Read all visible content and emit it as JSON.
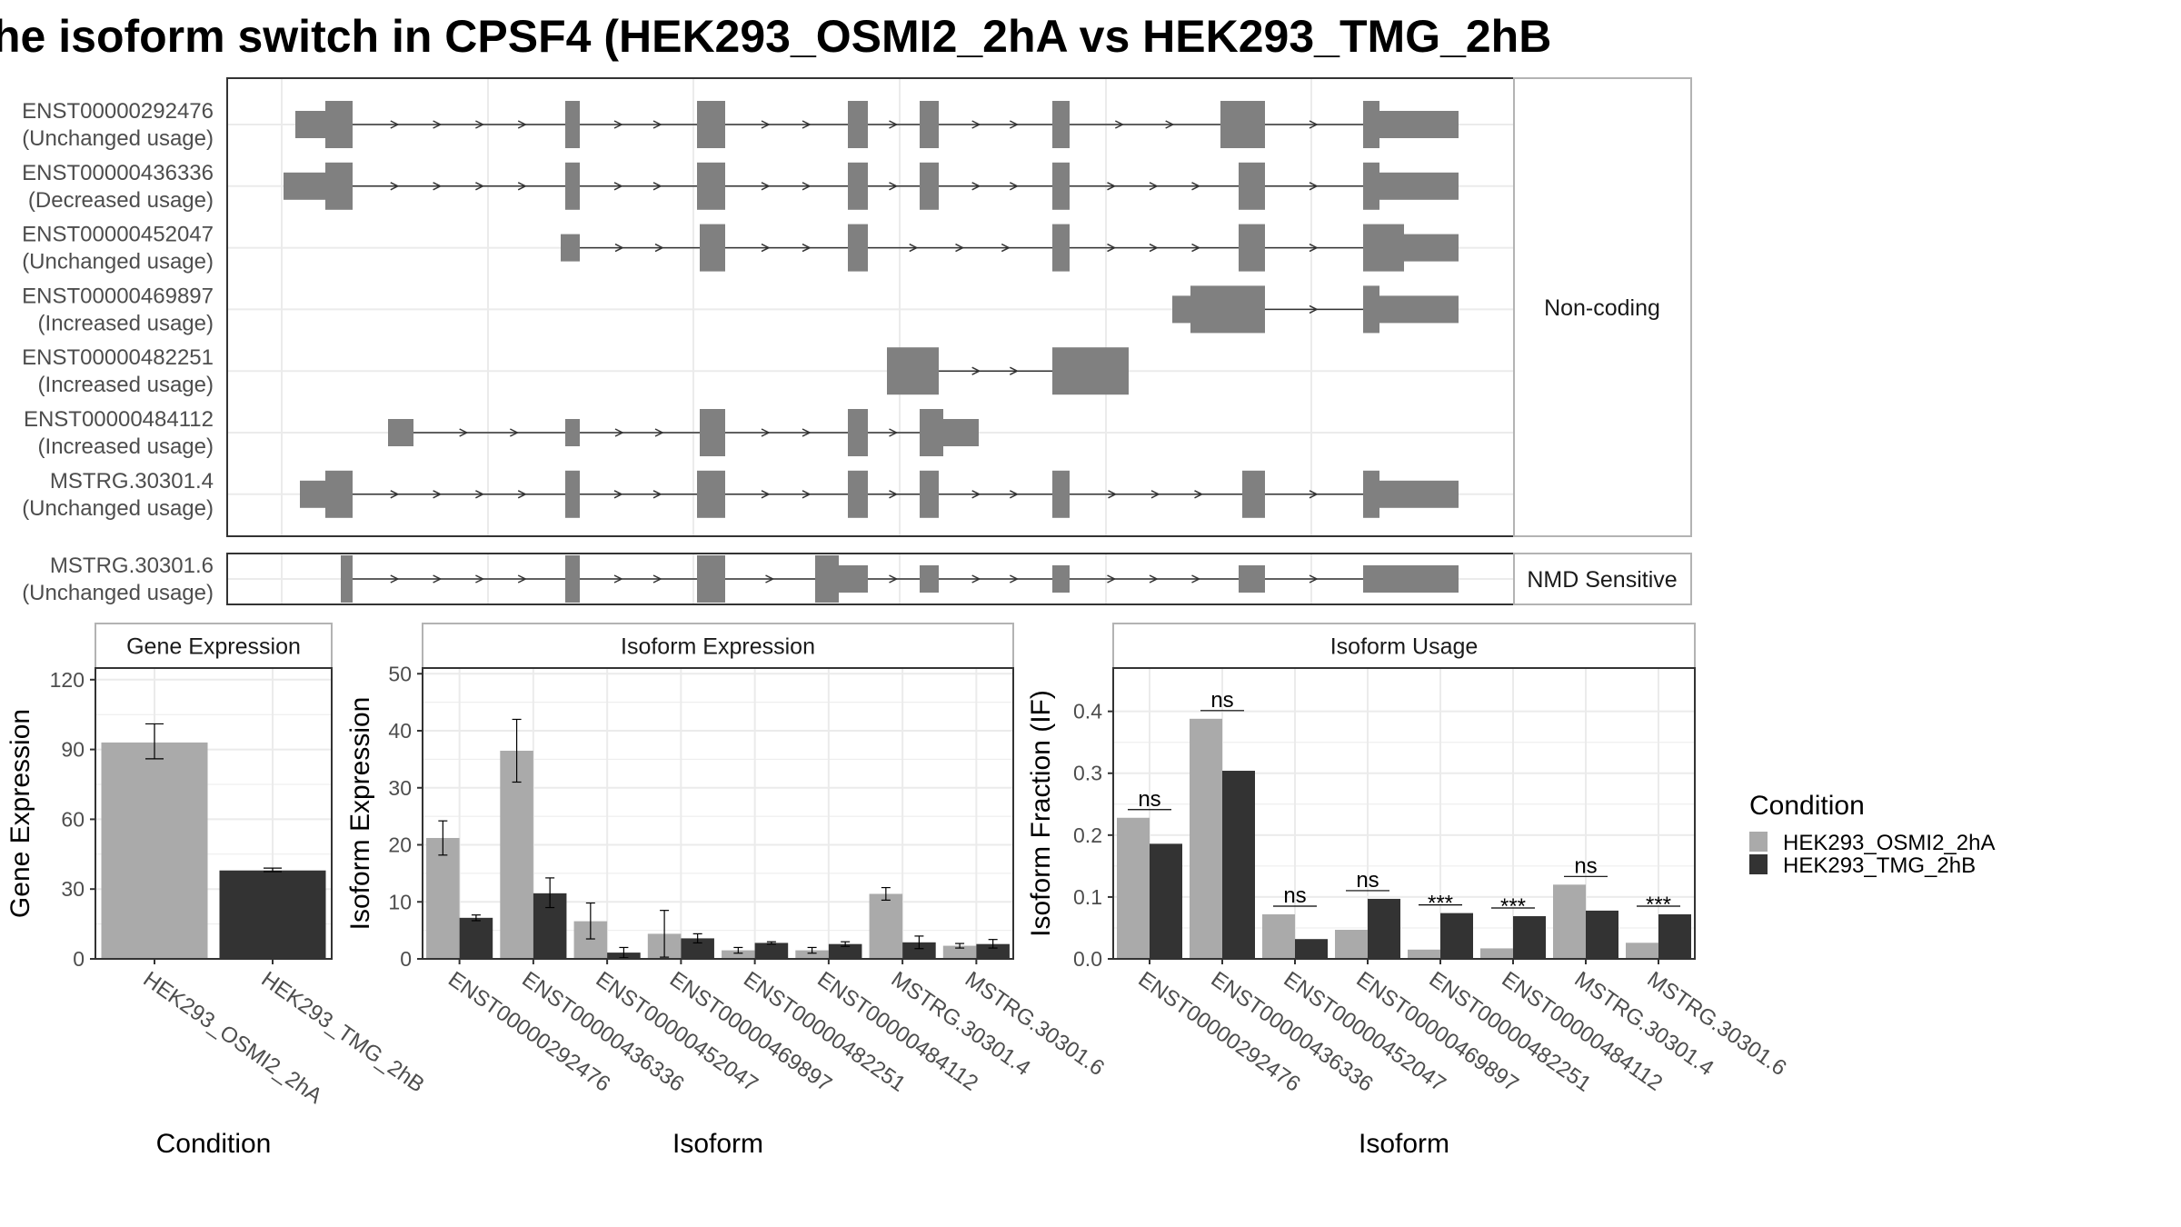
{
  "title": "he isoform switch in CPSF4 (HEK293_OSMI2_2hA vs HEK293_TMG_2hB",
  "colors": {
    "cond_a": "#aaaaaa",
    "cond_b": "#333333",
    "exon": "#808080",
    "panel_border": "#333333",
    "strip_border": "#b3b3b3",
    "grid": "#ebebeb",
    "text_dark": "#000000",
    "text_axis": "#4d4d4d"
  },
  "isoform_structure": {
    "coding_panel_label": "Non-coding",
    "nmd_panel_label": "NMD Sensitive",
    "coding_rows": [
      {
        "id": "ENST00000292476",
        "status": "(Unchanged usage)"
      },
      {
        "id": "ENST00000436336",
        "status": "(Decreased usage)"
      },
      {
        "id": "ENST00000452047",
        "status": "(Unchanged usage)"
      },
      {
        "id": "ENST00000469897",
        "status": "(Increased usage)"
      },
      {
        "id": "ENST00000482251",
        "status": "(Increased usage)"
      },
      {
        "id": "ENST00000484112",
        "status": "(Increased usage)"
      },
      {
        "id": "MSTRG.30301.4",
        "status": "(Unchanged usage)"
      }
    ],
    "nmd_rows": [
      {
        "id": "MSTRG.30301.6",
        "status": "(Unchanged usage)"
      }
    ]
  },
  "legend": {
    "title": "Condition",
    "items": [
      "HEK293_OSMI2_2hA",
      "HEK293_TMG_2hB"
    ]
  },
  "chart_data": [
    {
      "type": "bar",
      "title": "Gene Expression",
      "xlabel": "Condition",
      "ylabel": "Gene Expression",
      "ylim": [
        0,
        125
      ],
      "yticks": [
        0,
        30,
        60,
        90,
        120
      ],
      "categories": [
        "HEK293_OSMI2_2hA",
        "HEK293_TMG_2hB"
      ],
      "values": [
        93,
        38
      ],
      "errors": [
        [
          86,
          101
        ],
        [
          37.5,
          39
        ]
      ]
    },
    {
      "type": "bar",
      "title": "Isoform Expression",
      "xlabel": "Isoform",
      "ylabel": "Isoform Expression",
      "ylim": [
        0,
        51
      ],
      "yticks": [
        0,
        10,
        20,
        30,
        40,
        50
      ],
      "categories": [
        "ENST00000292476",
        "ENST00000436336",
        "ENST00000452047",
        "ENST00000469897",
        "ENST00000482251",
        "ENST00000484112",
        "MSTRG.30301.4",
        "MSTRG.30301.6"
      ],
      "series": [
        {
          "name": "HEK293_OSMI2_2hA",
          "values": [
            21.2,
            36.5,
            6.6,
            4.4,
            1.5,
            1.5,
            11.4,
            2.3
          ],
          "errors": [
            [
              18.2,
              24.2
            ],
            [
              31,
              42
            ],
            [
              3.5,
              9.8
            ],
            [
              0.3,
              8.5
            ],
            [
              1,
              2
            ],
            [
              1,
              2
            ],
            [
              10.3,
              12.5
            ],
            [
              1.9,
              2.7
            ]
          ]
        },
        {
          "name": "HEK293_TMG_2hB",
          "values": [
            7.2,
            11.5,
            1.1,
            3.6,
            2.8,
            2.6,
            2.9,
            2.6
          ],
          "errors": [
            [
              6.7,
              7.7
            ],
            [
              9,
              14.2
            ],
            [
              0.2,
              2
            ],
            [
              2.8,
              4.4
            ],
            [
              2.6,
              3
            ],
            [
              2.2,
              3
            ],
            [
              1.8,
              4
            ],
            [
              1.9,
              3.4
            ]
          ]
        }
      ]
    },
    {
      "type": "bar",
      "title": "Isoform Usage",
      "xlabel": "Isoform",
      "ylabel": "Isoform Fraction (IF)",
      "ylim": [
        0,
        0.47
      ],
      "yticks": [
        0,
        0.1,
        0.2,
        0.3,
        0.4
      ],
      "ytick_labels": [
        "0.0",
        "0.1",
        "0.2",
        "0.3",
        "0.4"
      ],
      "categories": [
        "ENST00000292476",
        "ENST00000436336",
        "ENST00000452047",
        "ENST00000469897",
        "ENST00000482251",
        "ENST00000484112",
        "MSTRG.30301.4",
        "MSTRG.30301.6"
      ],
      "series": [
        {
          "name": "HEK293_OSMI2_2hA",
          "values": [
            0.228,
            0.388,
            0.072,
            0.047,
            0.015,
            0.017,
            0.12,
            0.026
          ]
        },
        {
          "name": "HEK293_TMG_2hB",
          "values": [
            0.186,
            0.304,
            0.032,
            0.097,
            0.074,
            0.069,
            0.078,
            0.072
          ]
        }
      ],
      "significance": [
        "ns",
        "ns",
        "ns",
        "ns",
        "***",
        "***",
        "ns",
        "***"
      ]
    }
  ]
}
